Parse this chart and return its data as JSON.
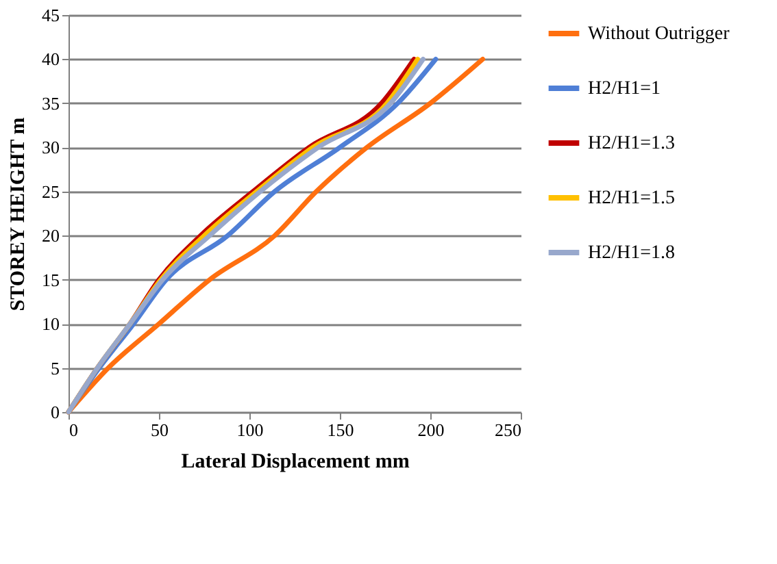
{
  "chart_data": {
    "type": "line",
    "xlabel": "Lateral Displacement mm",
    "ylabel": "STOREY HEIGHT  m",
    "xlim": [
      0,
      250
    ],
    "xticks": [
      0,
      50,
      100,
      150,
      200,
      250
    ],
    "ylim": [
      0,
      45
    ],
    "yticks": [
      0,
      5,
      10,
      15,
      20,
      25,
      30,
      35,
      40,
      45
    ],
    "grid": "y",
    "legend": "right",
    "marker": "none",
    "series": [
      {
        "name": "Without Outrigger",
        "color": "#ff6f0f",
        "x": [
          0,
          22,
          50,
          78,
          114,
          137,
          165,
          200,
          229
        ],
        "values": [
          0,
          5,
          10,
          15,
          20,
          25,
          30,
          35,
          40
        ]
      },
      {
        "name": "H2/H1=1",
        "color": "#4f7fd6",
        "x": [
          0,
          17,
          36,
          54,
          88,
          114,
          150,
          182,
          203
        ],
        "values": [
          0,
          5,
          10,
          15,
          20,
          25,
          30,
          35,
          40
        ]
      },
      {
        "name": "H2/H1=1.3",
        "color": "#c00000",
        "x": [
          0,
          16,
          34,
          50,
          73,
          102,
          133,
          173,
          191
        ],
        "values": [
          0,
          5,
          10,
          15,
          20,
          25,
          30,
          35,
          40
        ]
      },
      {
        "name": "H2/H1=1.5",
        "color": "#ffc000",
        "x": [
          0,
          16,
          34,
          51,
          75,
          104,
          135,
          176,
          193
        ],
        "values": [
          0,
          5,
          10,
          15,
          20,
          25,
          30,
          35,
          40
        ]
      },
      {
        "name": "H2/H1=1.8",
        "color": "#98a8cc",
        "x": [
          0,
          16,
          34,
          52,
          78,
          106,
          138,
          178,
          196
        ],
        "values": [
          0,
          5,
          10,
          15,
          20,
          25,
          30,
          35,
          40
        ]
      }
    ]
  }
}
